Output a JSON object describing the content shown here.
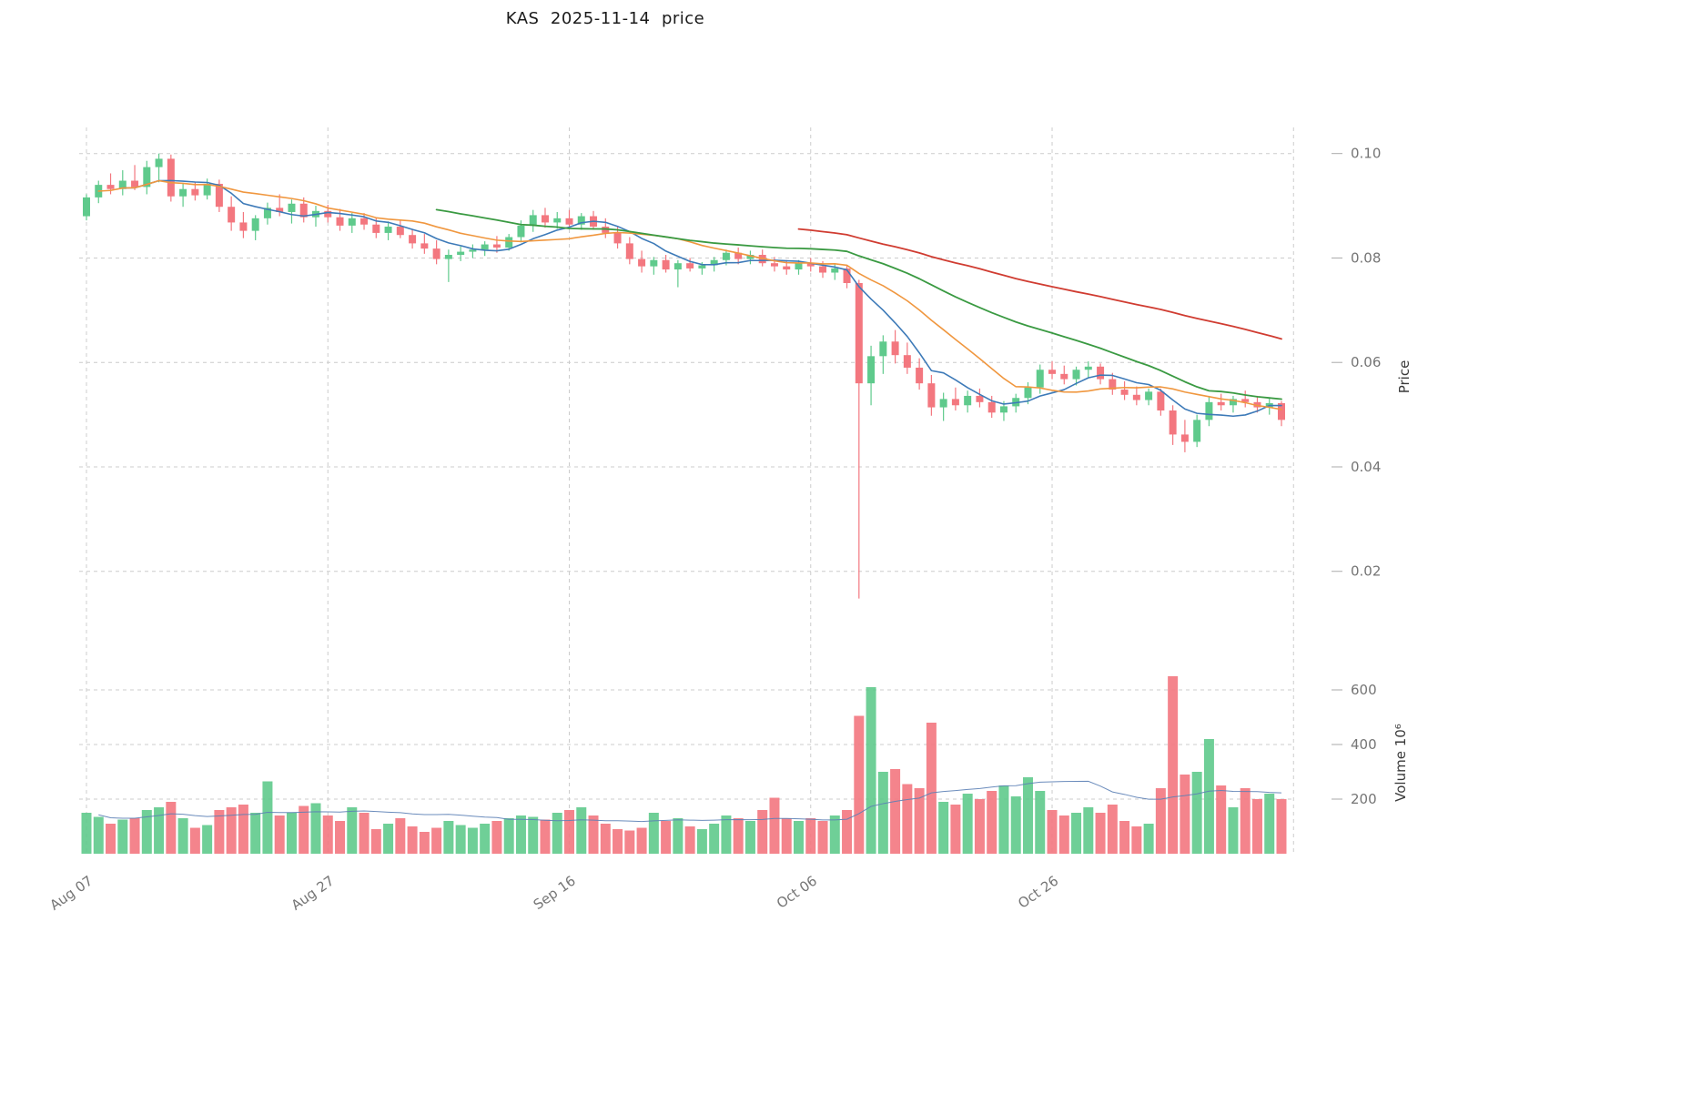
{
  "chart_data": {
    "type": "candlestick",
    "symbol": "KAS",
    "as_of_date": "2025-11-14",
    "title": "KAS  2025-11-14  price",
    "ylabel": "Price",
    "y2label": "Volume  10⁶",
    "grid": true,
    "legend": "none",
    "price_range": [
      0.0095,
      0.105
    ],
    "volume_range_millions": [
      0,
      790
    ],
    "price_ticks": [
      0.1,
      0.08,
      0.06,
      0.04,
      0.02
    ],
    "volume_ticks": [
      600,
      400,
      200
    ],
    "x_ticks": [
      {
        "i": 0,
        "label": "Aug 07"
      },
      {
        "i": 20,
        "label": "Aug 27"
      },
      {
        "i": 40,
        "label": "Sep 16"
      },
      {
        "i": 60,
        "label": "Oct 06"
      },
      {
        "i": 80,
        "label": "Oct 26"
      },
      {
        "i": 100,
        "label": ""
      }
    ],
    "colors": {
      "up": "#5fca8c",
      "down": "#f3777f",
      "ma_short": "#3d7ab8",
      "ma_mid": "#f0973f",
      "ma_long": "#3a9a42",
      "ma_xlong": "#d03c31",
      "vol_ma": "#5b7fb5",
      "grid": "#cccccc",
      "tick_text": "#757575",
      "axis_label_text": "#3a3a3a"
    },
    "moving_averages": [
      {
        "name": "ma-short",
        "window": 7,
        "min_periods": 4,
        "color_key": "ma_short",
        "width": 1.6
      },
      {
        "name": "ma-mid",
        "window": 14,
        "min_periods": 2,
        "color_key": "ma_mid",
        "width": 1.6
      },
      {
        "name": "ma-long",
        "window": 30,
        "min_periods": 30,
        "color_key": "ma_long",
        "width": 1.8
      },
      {
        "name": "ma-xlong",
        "window": 60,
        "min_periods": 60,
        "color_key": "ma_xlong",
        "width": 1.8
      }
    ],
    "volume_ma": {
      "window": 20,
      "min_periods": 2,
      "width": 1
    },
    "columns": [
      "date",
      "open",
      "high",
      "low",
      "close",
      "volume_millions"
    ],
    "candles": [
      [
        "2025-08-07",
        0.088,
        0.0922,
        0.0872,
        0.0916,
        150
      ],
      [
        "2025-08-08",
        0.0916,
        0.0948,
        0.0905,
        0.094,
        135
      ],
      [
        "2025-08-09",
        0.094,
        0.0962,
        0.0922,
        0.0932,
        110
      ],
      [
        "2025-08-10",
        0.0932,
        0.0968,
        0.092,
        0.0948,
        125
      ],
      [
        "2025-08-11",
        0.0948,
        0.0978,
        0.093,
        0.0936,
        130
      ],
      [
        "2025-08-12",
        0.0936,
        0.0986,
        0.0922,
        0.0974,
        160
      ],
      [
        "2025-08-13",
        0.0974,
        0.1,
        0.0945,
        0.099,
        170
      ],
      [
        "2025-08-14",
        0.099,
        0.0998,
        0.0908,
        0.0918,
        190
      ],
      [
        "2025-08-15",
        0.0918,
        0.0942,
        0.0898,
        0.0932,
        130
      ],
      [
        "2025-08-16",
        0.0932,
        0.0946,
        0.091,
        0.092,
        95
      ],
      [
        "2025-08-17",
        0.092,
        0.0952,
        0.0912,
        0.0942,
        105
      ],
      [
        "2025-08-18",
        0.0942,
        0.095,
        0.0888,
        0.0898,
        160
      ],
      [
        "2025-08-19",
        0.0898,
        0.0918,
        0.0852,
        0.0868,
        170
      ],
      [
        "2025-08-20",
        0.0868,
        0.0888,
        0.0838,
        0.0852,
        180
      ],
      [
        "2025-08-21",
        0.0852,
        0.0882,
        0.0834,
        0.0876,
        150
      ],
      [
        "2025-08-22",
        0.0876,
        0.0906,
        0.0864,
        0.0896,
        265
      ],
      [
        "2025-08-23",
        0.0896,
        0.0922,
        0.088,
        0.0888,
        140
      ],
      [
        "2025-08-24",
        0.0888,
        0.0912,
        0.0866,
        0.0904,
        150
      ],
      [
        "2025-08-25",
        0.0904,
        0.0916,
        0.0868,
        0.0878,
        175
      ],
      [
        "2025-08-26",
        0.0878,
        0.09,
        0.086,
        0.089,
        185
      ],
      [
        "2025-08-27",
        0.089,
        0.0902,
        0.0868,
        0.0878,
        140
      ],
      [
        "2025-08-28",
        0.0878,
        0.0894,
        0.0852,
        0.0862,
        120
      ],
      [
        "2025-08-29",
        0.0862,
        0.0886,
        0.0848,
        0.0876,
        170
      ],
      [
        "2025-08-30",
        0.0876,
        0.0886,
        0.0854,
        0.0864,
        150
      ],
      [
        "2025-08-31",
        0.0864,
        0.0876,
        0.0838,
        0.0848,
        90
      ],
      [
        "2025-09-01",
        0.0848,
        0.087,
        0.0834,
        0.086,
        110
      ],
      [
        "2025-09-02",
        0.086,
        0.0872,
        0.0838,
        0.0844,
        130
      ],
      [
        "2025-09-03",
        0.0844,
        0.0856,
        0.0818,
        0.0828,
        100
      ],
      [
        "2025-09-04",
        0.0828,
        0.0846,
        0.0808,
        0.0818,
        80
      ],
      [
        "2025-09-05",
        0.0818,
        0.0834,
        0.0788,
        0.0798,
        95
      ],
      [
        "2025-09-06",
        0.0798,
        0.0816,
        0.0754,
        0.0806,
        120
      ],
      [
        "2025-09-07",
        0.0806,
        0.0822,
        0.0794,
        0.0812,
        105
      ],
      [
        "2025-09-08",
        0.0812,
        0.0826,
        0.08,
        0.0816,
        95
      ],
      [
        "2025-09-09",
        0.0816,
        0.0832,
        0.0804,
        0.0826,
        110
      ],
      [
        "2025-09-10",
        0.0826,
        0.0842,
        0.081,
        0.082,
        120
      ],
      [
        "2025-09-11",
        0.082,
        0.0846,
        0.0814,
        0.084,
        130
      ],
      [
        "2025-09-12",
        0.084,
        0.0872,
        0.083,
        0.0862,
        140
      ],
      [
        "2025-09-13",
        0.0862,
        0.0892,
        0.085,
        0.0882,
        135
      ],
      [
        "2025-09-14",
        0.0882,
        0.0896,
        0.0858,
        0.0868,
        125
      ],
      [
        "2025-09-15",
        0.0868,
        0.0888,
        0.0856,
        0.0876,
        150
      ],
      [
        "2025-09-16",
        0.0876,
        0.0892,
        0.0858,
        0.0864,
        160
      ],
      [
        "2025-09-17",
        0.0864,
        0.0886,
        0.0854,
        0.088,
        170
      ],
      [
        "2025-09-18",
        0.088,
        0.089,
        0.0854,
        0.086,
        140
      ],
      [
        "2025-09-19",
        0.086,
        0.0876,
        0.0838,
        0.0848,
        110
      ],
      [
        "2025-09-20",
        0.0848,
        0.086,
        0.0818,
        0.0828,
        90
      ],
      [
        "2025-09-21",
        0.0828,
        0.084,
        0.0788,
        0.0798,
        85
      ],
      [
        "2025-09-22",
        0.0798,
        0.0814,
        0.0772,
        0.0784,
        95
      ],
      [
        "2025-09-23",
        0.0784,
        0.0802,
        0.0768,
        0.0796,
        150
      ],
      [
        "2025-09-24",
        0.0796,
        0.0806,
        0.0772,
        0.0778,
        120
      ],
      [
        "2025-09-25",
        0.0778,
        0.0796,
        0.0744,
        0.079,
        130
      ],
      [
        "2025-09-26",
        0.079,
        0.08,
        0.0774,
        0.078,
        100
      ],
      [
        "2025-09-27",
        0.078,
        0.0792,
        0.0768,
        0.0786,
        90
      ],
      [
        "2025-09-28",
        0.0786,
        0.0802,
        0.0774,
        0.0796,
        110
      ],
      [
        "2025-09-29",
        0.0796,
        0.0816,
        0.0786,
        0.081,
        140
      ],
      [
        "2025-09-30",
        0.081,
        0.082,
        0.0788,
        0.0798,
        130
      ],
      [
        "2025-10-01",
        0.0798,
        0.0814,
        0.0788,
        0.0806,
        120
      ],
      [
        "2025-10-02",
        0.0806,
        0.0816,
        0.0784,
        0.079,
        160
      ],
      [
        "2025-10-03",
        0.079,
        0.0802,
        0.0774,
        0.0784,
        205
      ],
      [
        "2025-10-04",
        0.0784,
        0.0796,
        0.0768,
        0.0778,
        130
      ],
      [
        "2025-10-05",
        0.0778,
        0.0796,
        0.0768,
        0.079,
        120
      ],
      [
        "2025-10-06",
        0.079,
        0.08,
        0.0774,
        0.0784,
        130
      ],
      [
        "2025-10-07",
        0.0784,
        0.0794,
        0.0762,
        0.0772,
        120
      ],
      [
        "2025-10-08",
        0.0772,
        0.079,
        0.0758,
        0.078,
        140
      ],
      [
        "2025-10-09",
        0.078,
        0.0786,
        0.0742,
        0.0752,
        160
      ],
      [
        "2025-10-10",
        0.0752,
        0.0758,
        0.0148,
        0.056,
        505
      ],
      [
        "2025-10-11",
        0.056,
        0.0632,
        0.0518,
        0.0612,
        610
      ],
      [
        "2025-10-12",
        0.0612,
        0.0652,
        0.0578,
        0.064,
        300
      ],
      [
        "2025-10-13",
        0.064,
        0.0662,
        0.0598,
        0.0614,
        310
      ],
      [
        "2025-10-14",
        0.0614,
        0.0638,
        0.0578,
        0.059,
        255
      ],
      [
        "2025-10-15",
        0.059,
        0.0608,
        0.0548,
        0.056,
        240
      ],
      [
        "2025-10-16",
        0.056,
        0.0576,
        0.0498,
        0.0514,
        480
      ],
      [
        "2025-10-17",
        0.0514,
        0.0542,
        0.0488,
        0.053,
        190
      ],
      [
        "2025-10-18",
        0.053,
        0.0552,
        0.0508,
        0.0518,
        180
      ],
      [
        "2025-10-19",
        0.0518,
        0.0546,
        0.0504,
        0.0536,
        220
      ],
      [
        "2025-10-20",
        0.0536,
        0.055,
        0.0514,
        0.0524,
        200
      ],
      [
        "2025-10-21",
        0.0524,
        0.0536,
        0.0494,
        0.0504,
        230
      ],
      [
        "2025-10-22",
        0.0504,
        0.0526,
        0.0488,
        0.0516,
        250
      ],
      [
        "2025-10-23",
        0.0516,
        0.054,
        0.0504,
        0.0532,
        210
      ],
      [
        "2025-10-24",
        0.0532,
        0.0562,
        0.052,
        0.0552,
        280
      ],
      [
        "2025-10-25",
        0.0552,
        0.0596,
        0.054,
        0.0586,
        230
      ],
      [
        "2025-10-26",
        0.0586,
        0.0602,
        0.0568,
        0.0578,
        160
      ],
      [
        "2025-10-27",
        0.0578,
        0.0594,
        0.0558,
        0.0568,
        140
      ],
      [
        "2025-10-28",
        0.0568,
        0.0592,
        0.0556,
        0.0586,
        150
      ],
      [
        "2025-10-29",
        0.0586,
        0.0602,
        0.057,
        0.0592,
        170
      ],
      [
        "2025-10-30",
        0.0592,
        0.0598,
        0.0558,
        0.0568,
        150
      ],
      [
        "2025-10-31",
        0.0568,
        0.058,
        0.0538,
        0.0548,
        180
      ],
      [
        "2025-11-01",
        0.0548,
        0.0564,
        0.0528,
        0.0538,
        120
      ],
      [
        "2025-11-02",
        0.0538,
        0.0554,
        0.0518,
        0.0528,
        100
      ],
      [
        "2025-11-03",
        0.0528,
        0.055,
        0.0518,
        0.0544,
        110
      ],
      [
        "2025-11-04",
        0.0544,
        0.055,
        0.0498,
        0.0508,
        240
      ],
      [
        "2025-11-05",
        0.0508,
        0.0518,
        0.0442,
        0.0462,
        650
      ],
      [
        "2025-11-06",
        0.0462,
        0.049,
        0.0428,
        0.0448,
        290
      ],
      [
        "2025-11-07",
        0.0448,
        0.05,
        0.0438,
        0.049,
        300
      ],
      [
        "2025-11-08",
        0.049,
        0.0536,
        0.0478,
        0.0524,
        420
      ],
      [
        "2025-11-09",
        0.0524,
        0.054,
        0.0508,
        0.0518,
        250
      ],
      [
        "2025-11-10",
        0.0518,
        0.0536,
        0.0504,
        0.053,
        170
      ],
      [
        "2025-11-11",
        0.053,
        0.0546,
        0.0514,
        0.0524,
        240
      ],
      [
        "2025-11-12",
        0.0524,
        0.0536,
        0.0504,
        0.0514,
        200
      ],
      [
        "2025-11-13",
        0.0514,
        0.0532,
        0.05,
        0.0522,
        220
      ],
      [
        "2025-11-14",
        0.0522,
        0.0526,
        0.0478,
        0.049,
        200
      ]
    ]
  }
}
